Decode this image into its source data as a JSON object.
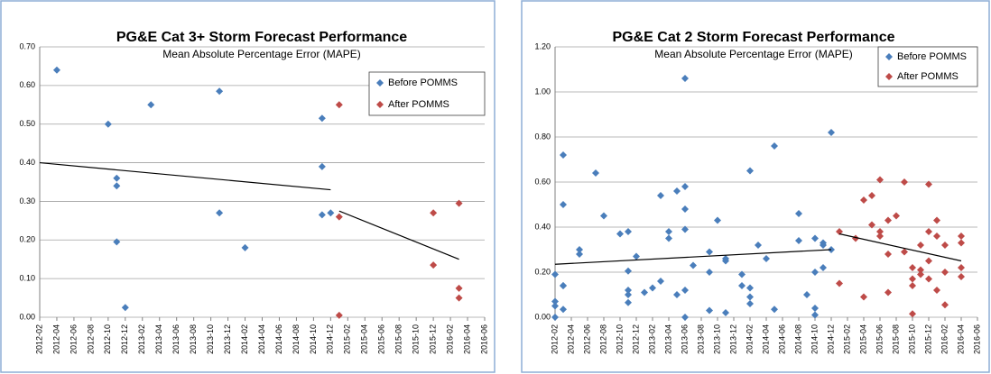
{
  "chart_data": [
    {
      "type": "scatter",
      "title": "PG&E Cat 3+ Storm Forecast Performance",
      "subtitle": "Mean Absolute Percentage Error (MAPE)",
      "legend": "upper right",
      "grid": true,
      "xlim": [
        "2012-02",
        "2016-06"
      ],
      "xticks": [
        "2012-02",
        "2012-04",
        "2012-06",
        "2012-08",
        "2012-10",
        "2012-12",
        "2013-02",
        "2013-04",
        "2013-06",
        "2013-08",
        "2013-10",
        "2013-12",
        "2014-02",
        "2014-04",
        "2014-06",
        "2014-08",
        "2014-10",
        "2014-12",
        "2015-02",
        "2015-04",
        "2015-06",
        "2015-08",
        "2015-10",
        "2015-12",
        "2016-02",
        "2016-04",
        "2016-06"
      ],
      "ylim": [
        0,
        0.7
      ],
      "yticks": [
        {
          "value": 0,
          "label": "0.00"
        },
        {
          "value": 0.1,
          "label": "0.10"
        },
        {
          "value": 0.2,
          "label": "0.20"
        },
        {
          "value": 0.3,
          "label": "0.30"
        },
        {
          "value": 0.4,
          "label": "0.40"
        },
        {
          "value": 0.5,
          "label": "0.50"
        },
        {
          "value": 0.6,
          "label": "0.60"
        },
        {
          "value": 0.7,
          "label": "0.70"
        }
      ],
      "series": [
        {
          "name": "Before POMMS",
          "color": "#4a7ebb",
          "x": [
            "2012-04",
            "2012-10",
            "2012-11",
            "2012-11",
            "2012-11",
            "2012-12",
            "2013-03",
            "2013-11",
            "2013-11",
            "2014-02",
            "2014-11",
            "2014-11",
            "2014-11",
            "2014-12"
          ],
          "values": [
            0.64,
            0.5,
            0.36,
            0.34,
            0.195,
            0.025,
            0.55,
            0.585,
            0.27,
            0.18,
            0.515,
            0.39,
            0.265,
            0.27
          ]
        },
        {
          "name": "After POMMS",
          "color": "#be4b48",
          "x": [
            "2015-01",
            "2015-01",
            "2015-01",
            "2015-12",
            "2015-12",
            "2016-03",
            "2016-03",
            "2016-03"
          ],
          "values": [
            0.55,
            0.26,
            0.005,
            0.27,
            0.135,
            0.295,
            0.075,
            0.05
          ]
        }
      ],
      "trendlines": [
        {
          "x": [
            "2012-02",
            "2014-12"
          ],
          "values": [
            0.4,
            0.33
          ]
        },
        {
          "x": [
            "2015-01",
            "2016-03"
          ],
          "values": [
            0.275,
            0.15
          ]
        }
      ]
    },
    {
      "type": "scatter",
      "title": "PG&E Cat 2 Storm Forecast Performance",
      "subtitle": "Mean Absolute Percentage Error (MAPE)",
      "legend": "upper right",
      "grid": true,
      "xlim": [
        "2012-02",
        "2016-06"
      ],
      "xticks": [
        "2012-02",
        "2012-04",
        "2012-06",
        "2012-08",
        "2012-10",
        "2012-12",
        "2013-02",
        "2013-04",
        "2013-06",
        "2013-08",
        "2013-10",
        "2013-12",
        "2014-02",
        "2014-04",
        "2014-06",
        "2014-08",
        "2014-10",
        "2014-12",
        "2015-02",
        "2015-04",
        "2015-06",
        "2015-08",
        "2015-10",
        "2015-12",
        "2016-02",
        "2016-04",
        "2016-06"
      ],
      "ylim": [
        0,
        1.2
      ],
      "yticks": [
        {
          "value": 0,
          "label": "0.00"
        },
        {
          "value": 0.2,
          "label": "0.20"
        },
        {
          "value": 0.4,
          "label": "0.40"
        },
        {
          "value": 0.6,
          "label": "0.60"
        },
        {
          "value": 0.8,
          "label": "0.80"
        },
        {
          "value": 1,
          "label": "1.00"
        },
        {
          "value": 1.2,
          "label": "1.20"
        }
      ],
      "series": [
        {
          "name": "Before POMMS",
          "color": "#4a7ebb",
          "x": [
            "2012-02",
            "2012-02",
            "2012-02",
            "2012-02",
            "2012-03",
            "2012-03",
            "2012-03",
            "2012-03",
            "2012-03",
            "2012-05",
            "2012-05",
            "2012-07",
            "2012-08",
            "2012-10",
            "2012-11",
            "2012-11",
            "2012-11",
            "2012-11",
            "2012-11",
            "2012-12",
            "2013-01",
            "2013-02",
            "2013-03",
            "2013-03",
            "2013-04",
            "2013-04",
            "2013-05",
            "2013-05",
            "2013-06",
            "2013-06",
            "2013-06",
            "2013-06",
            "2013-06",
            "2013-06",
            "2013-07",
            "2013-09",
            "2013-09",
            "2013-09",
            "2013-10",
            "2013-11",
            "2013-11",
            "2013-11",
            "2014-01",
            "2014-01",
            "2014-02",
            "2014-02",
            "2014-02",
            "2014-02",
            "2014-03",
            "2014-04",
            "2014-05",
            "2014-05",
            "2014-08",
            "2014-08",
            "2014-09",
            "2014-10",
            "2014-10",
            "2014-10",
            "2014-10",
            "2014-11",
            "2014-11",
            "2014-11",
            "2014-12",
            "2014-12"
          ],
          "values": [
            0.07,
            0.05,
            0.0,
            0.19,
            0.72,
            0.14,
            0.035,
            0.14,
            0.5,
            0.3,
            0.28,
            0.64,
            0.45,
            0.37,
            0.38,
            0.205,
            0.12,
            0.1,
            0.065,
            0.27,
            0.11,
            0.13,
            0.54,
            0.16,
            0.35,
            0.38,
            0.56,
            0.1,
            1.06,
            0.58,
            0.48,
            0.12,
            0.0,
            0.39,
            0.23,
            0.03,
            0.29,
            0.2,
            0.43,
            0.26,
            0.25,
            0.02,
            0.14,
            0.19,
            0.09,
            0.65,
            0.13,
            0.06,
            0.32,
            0.26,
            0.035,
            0.76,
            0.34,
            0.46,
            0.1,
            0.04,
            0.01,
            0.35,
            0.2,
            0.22,
            0.33,
            0.32,
            0.82,
            0.3
          ]
        },
        {
          "name": "After POMMS",
          "color": "#be4b48",
          "x": [
            "2015-01",
            "2015-01",
            "2015-03",
            "2015-04",
            "2015-04",
            "2015-05",
            "2015-05",
            "2015-06",
            "2015-06",
            "2015-06",
            "2015-07",
            "2015-07",
            "2015-07",
            "2015-08",
            "2015-09",
            "2015-09",
            "2015-10",
            "2015-10",
            "2015-10",
            "2015-10",
            "2015-11",
            "2015-11",
            "2015-11",
            "2015-12",
            "2015-12",
            "2015-12",
            "2015-12",
            "2016-01",
            "2016-01",
            "2016-01",
            "2016-02",
            "2016-02",
            "2016-02",
            "2016-04",
            "2016-04",
            "2016-04",
            "2016-04"
          ],
          "values": [
            0.38,
            0.15,
            0.35,
            0.52,
            0.09,
            0.54,
            0.41,
            0.36,
            0.38,
            0.61,
            0.28,
            0.11,
            0.43,
            0.45,
            0.29,
            0.6,
            0.015,
            0.17,
            0.22,
            0.14,
            0.19,
            0.21,
            0.32,
            0.59,
            0.38,
            0.25,
            0.17,
            0.36,
            0.43,
            0.12,
            0.055,
            0.32,
            0.2,
            0.36,
            0.33,
            0.22,
            0.18
          ]
        }
      ],
      "trendlines": [
        {
          "x": [
            "2012-02",
            "2014-12"
          ],
          "values": [
            0.235,
            0.3
          ]
        },
        {
          "x": [
            "2015-01",
            "2016-04"
          ],
          "values": [
            0.37,
            0.25
          ]
        }
      ]
    }
  ]
}
